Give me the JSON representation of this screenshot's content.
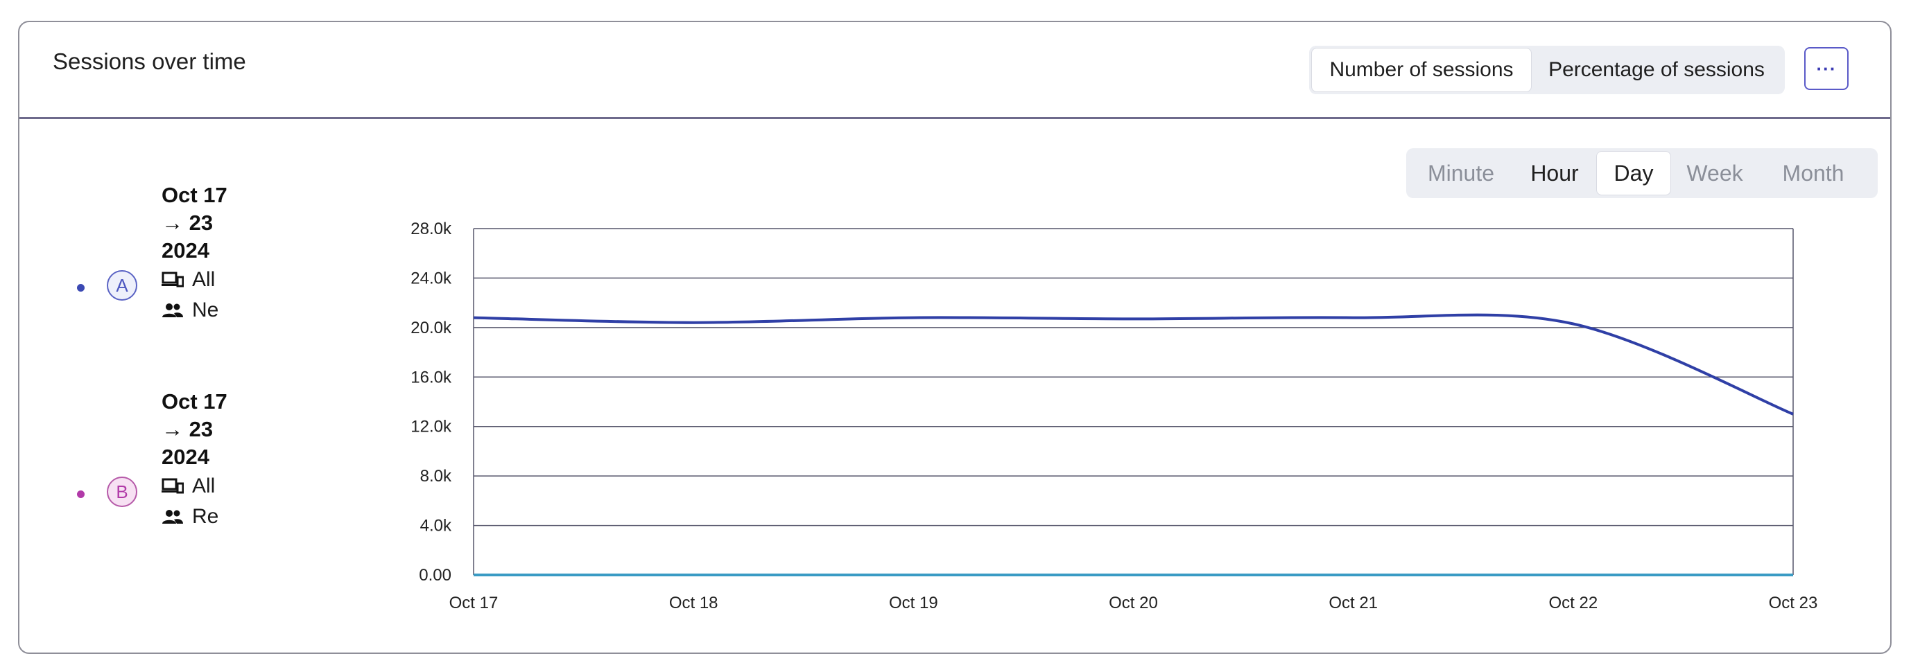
{
  "card": {
    "title": "Sessions over time",
    "toggle": {
      "number_label": "Number of sessions",
      "percentage_label": "Percentage of sessions",
      "selected": "Number of sessions"
    },
    "more_label": "···"
  },
  "granularity": {
    "options": [
      "Minute",
      "Hour",
      "Day",
      "Week",
      "Month"
    ],
    "selected": "Day",
    "enabled": [
      "Hour",
      "Day"
    ]
  },
  "legend": [
    {
      "badge": "A",
      "date_range": "Oct 17 → 23 2024",
      "devices": "All",
      "users": "Ne",
      "color": "#3b49b3",
      "badge_bg": "#eef0fb",
      "badge_border": "#5a63c4",
      "badge_text": "#4d57c0"
    },
    {
      "badge": "B",
      "date_range": "Oct 17 → 23 2024",
      "devices": "All",
      "users": "Re",
      "color": "#b13aa8",
      "badge_bg": "#f7e1f3",
      "badge_border": "#b65aa9",
      "badge_text": "#b13aa8"
    }
  ],
  "chart_data": {
    "type": "line",
    "x": [
      "Oct 17",
      "Oct 18",
      "Oct 19",
      "Oct 20",
      "Oct 21",
      "Oct 22",
      "Oct 23"
    ],
    "y_ticks": [
      "0.00",
      "4.0k",
      "8.0k",
      "12.0k",
      "16.0k",
      "20.0k",
      "24.0k",
      "28.0k"
    ],
    "ylim": [
      0,
      28000
    ],
    "grid": true,
    "series": [
      {
        "color": "#2f3fa6",
        "values": [
          20800,
          20400,
          20800,
          20700,
          20800,
          20300,
          13000
        ]
      },
      {
        "color": "#3a9bc4",
        "values": [
          0,
          0,
          0,
          0,
          0,
          0,
          0
        ]
      }
    ]
  }
}
